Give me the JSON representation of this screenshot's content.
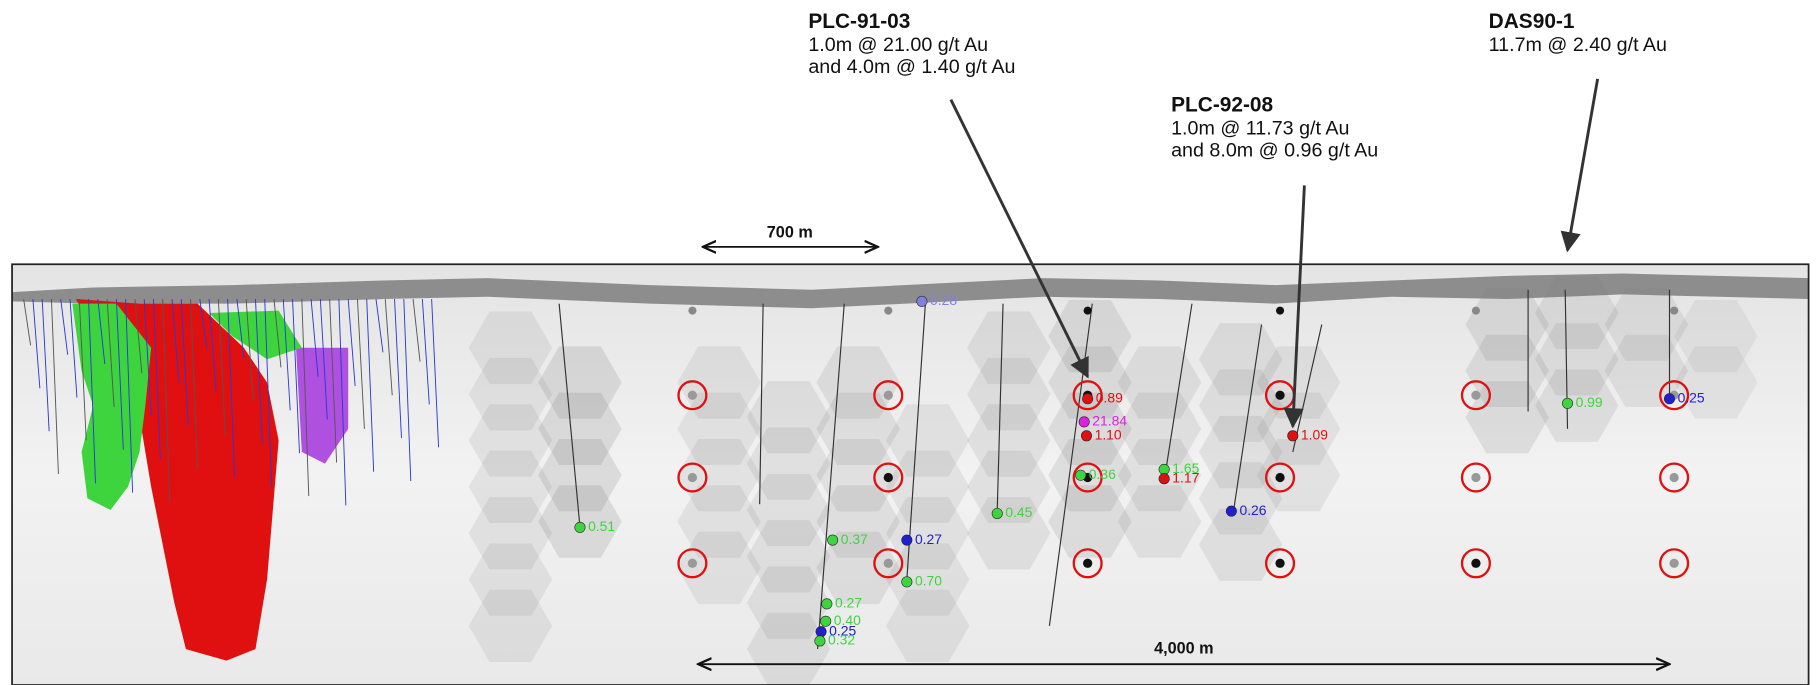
{
  "callouts": [
    {
      "hole": "PLC-91-03",
      "lines": [
        "1.0m @ 21.00 g/t Au",
        "and 4.0m @ 1.40 g/t Au"
      ]
    },
    {
      "hole": "PLC-92-08",
      "lines": [
        "1.0m @ 11.73 g/t Au",
        "and 8.0m @ 0.96 g/t Au"
      ]
    },
    {
      "hole": "DAS90-1",
      "lines": [
        "11.7m @ 2.40 g/t Au"
      ]
    }
  ],
  "scale_bars": [
    "700 m",
    "4,000 m"
  ],
  "assays": [
    "0.51",
    "0.37",
    "0.27",
    "0.70",
    "0.27",
    "0.40",
    "0.25",
    "0.32",
    "0.45",
    "0.36",
    "0.89",
    "21.84",
    "1.10",
    "1.65",
    "1.17",
    "0.26",
    "1.09",
    "0.25",
    "0.28",
    "0.99"
  ]
}
